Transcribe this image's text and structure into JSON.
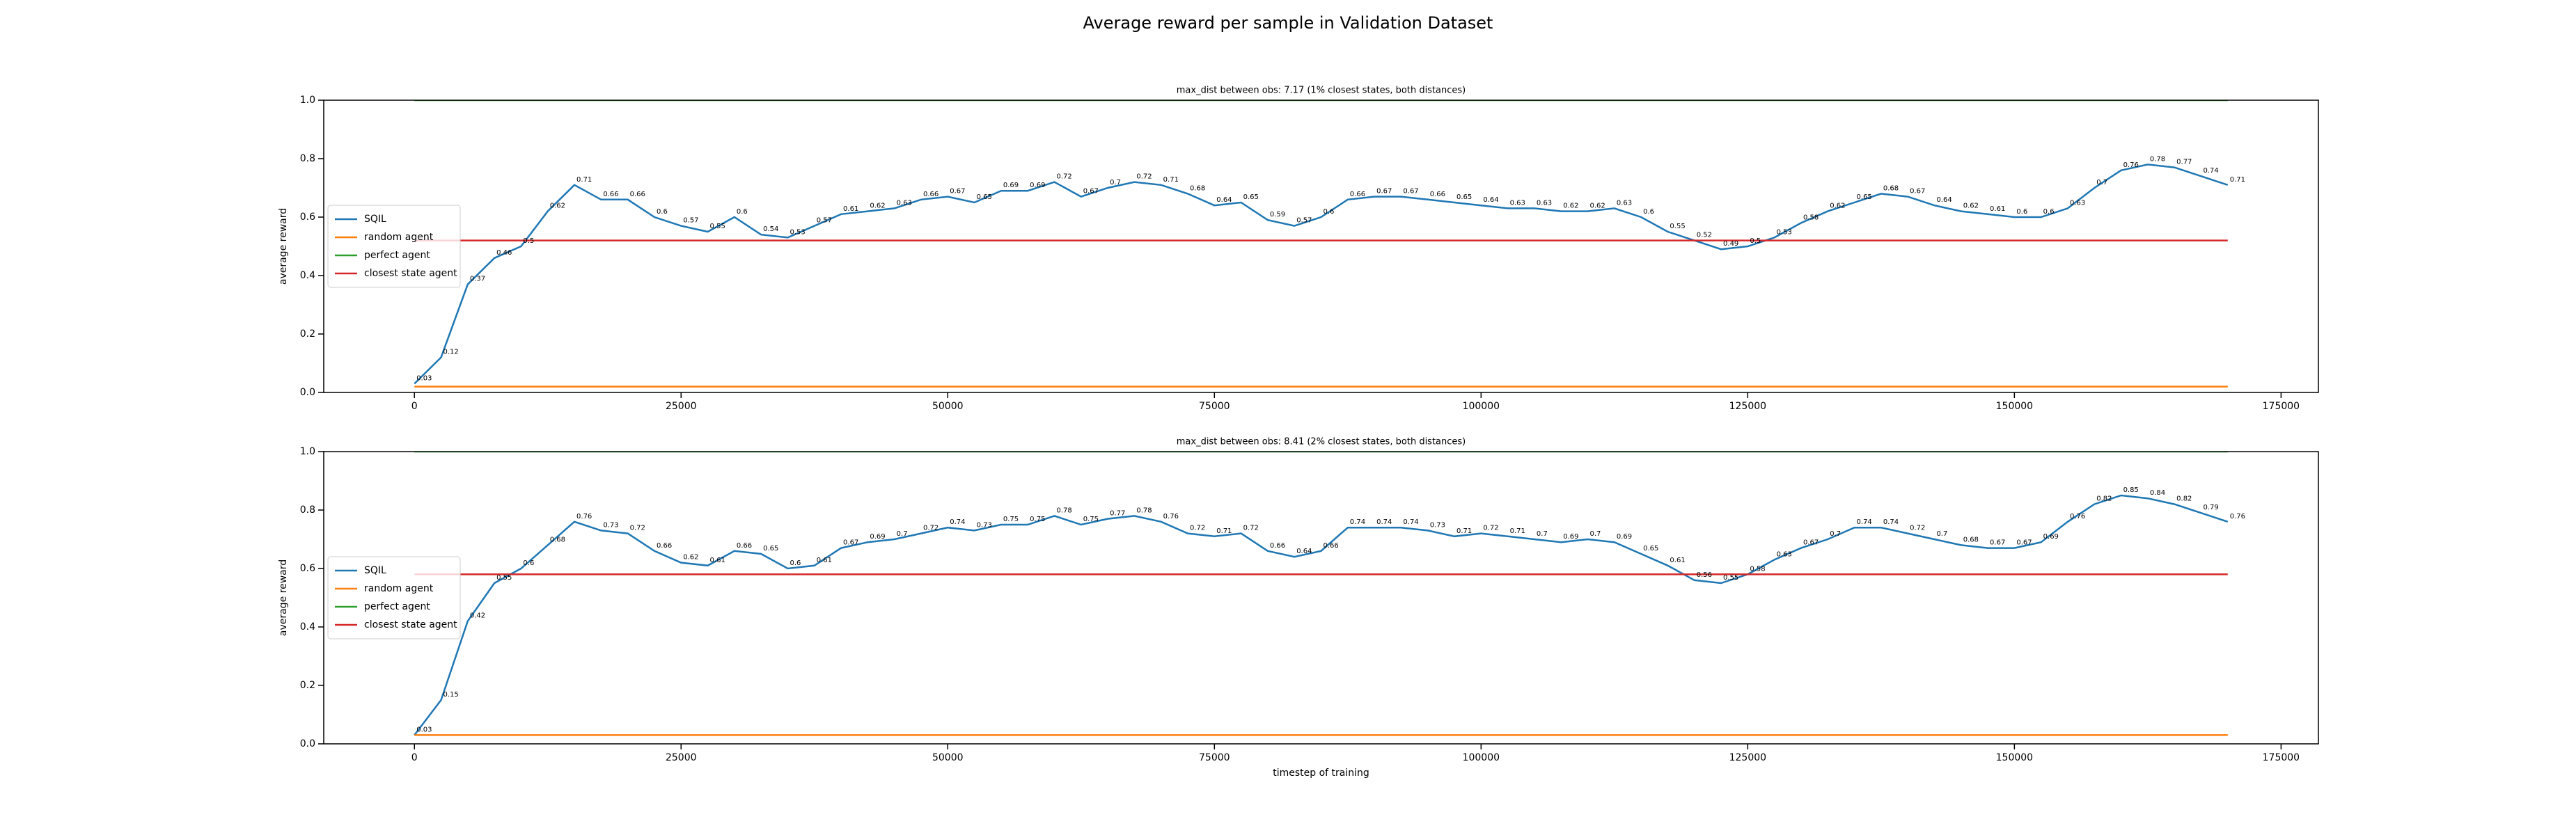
{
  "title": "Average reward per sample in Validation Dataset",
  "chart_data": [
    {
      "type": "line",
      "title": "max_dist between obs: 7.17 (1% closest states, both distances)",
      "ylabel": "average reward",
      "legend": "center left",
      "xlim": [
        -8500,
        178500
      ],
      "ylim": [
        0,
        1
      ],
      "xticks": [
        0,
        25000,
        50000,
        75000,
        100000,
        125000,
        150000,
        175000
      ],
      "yticks": [
        {
          "value": 0,
          "label": "0.0"
        },
        0.2,
        0.4,
        0.6,
        0.8,
        {
          "value": 1,
          "label": "1.0"
        }
      ],
      "x": [
        0,
        2500,
        5000,
        7500,
        10000,
        12500,
        15000,
        17500,
        20000,
        22500,
        25000,
        27500,
        30000,
        32500,
        35000,
        37500,
        40000,
        42500,
        45000,
        47500,
        50000,
        52500,
        55000,
        57500,
        60000,
        62500,
        65000,
        67500,
        70000,
        72500,
        75000,
        77500,
        80000,
        82500,
        85000,
        87500,
        90000,
        92500,
        95000,
        97500,
        100000,
        102500,
        105000,
        107500,
        110000,
        112500,
        115000,
        117500,
        120000,
        122500,
        125000,
        127500,
        130000,
        132500,
        135000,
        137500,
        140000,
        142500,
        145000,
        147500,
        150000,
        152500,
        155000,
        157500,
        160000,
        162500,
        165000,
        167500,
        170000
      ],
      "series": [
        {
          "name": "SQIL",
          "color": "#1f77b4",
          "show_values": true,
          "values": [
            0.03,
            0.12,
            0.37,
            0.46,
            0.5,
            0.62,
            0.71,
            0.66,
            0.66,
            0.6,
            0.57,
            0.55,
            0.6,
            0.54,
            0.53,
            0.57,
            0.61,
            0.62,
            0.63,
            0.66,
            0.67,
            0.65,
            0.69,
            0.69,
            0.72,
            0.67,
            0.7,
            0.72,
            0.71,
            0.68,
            0.64,
            0.65,
            0.59,
            0.57,
            0.6,
            0.66,
            0.67,
            0.67,
            0.66,
            0.65,
            0.64,
            0.63,
            0.63,
            0.62,
            0.62,
            0.63,
            0.6,
            0.55,
            0.52,
            0.49,
            0.5,
            0.53,
            0.58,
            0.62,
            0.65,
            0.68,
            0.67,
            0.64,
            0.62,
            0.61,
            0.6,
            0.6,
            0.63,
            0.7,
            0.76,
            0.78,
            0.77,
            0.74,
            0.71
          ]
        },
        {
          "name": "random agent",
          "color": "#ff7f0e",
          "values": [
            0.02,
            0.02,
            0.02,
            0.02,
            0.02,
            0.02,
            0.02,
            0.02,
            0.02,
            0.02,
            0.02,
            0.02,
            0.02,
            0.02,
            0.02,
            0.02,
            0.02,
            0.02,
            0.02,
            0.02,
            0.02,
            0.02,
            0.02,
            0.02,
            0.02,
            0.02,
            0.02,
            0.02,
            0.02,
            0.02,
            0.02,
            0.02,
            0.02,
            0.02,
            0.02,
            0.02,
            0.02,
            0.02,
            0.02,
            0.02,
            0.02,
            0.02,
            0.02,
            0.02,
            0.02,
            0.02,
            0.02,
            0.02,
            0.02,
            0.02,
            0.02,
            0.02,
            0.02,
            0.02,
            0.02,
            0.02,
            0.02,
            0.02,
            0.02,
            0.02,
            0.02,
            0.02,
            0.02,
            0.02,
            0.02,
            0.02,
            0.02,
            0.02,
            0.02
          ]
        },
        {
          "name": "perfect agent",
          "color": "#2ca02c",
          "x": [
            0,
            170000
          ],
          "values": [
            1,
            1
          ]
        },
        {
          "name": "closest state agent",
          "color": "#d62728",
          "x": [
            0,
            170000
          ],
          "values": [
            0.52,
            0.52
          ]
        }
      ]
    },
    {
      "type": "line",
      "title": "max_dist between obs: 8.41 (2% closest states, both distances)",
      "xlabel": "timestep of training",
      "ylabel": "average reward",
      "legend": "center left",
      "xlim": [
        -8500,
        178500
      ],
      "ylim": [
        0,
        1
      ],
      "xticks": [
        0,
        25000,
        50000,
        75000,
        100000,
        125000,
        150000,
        175000
      ],
      "yticks": [
        {
          "value": 0,
          "label": "0.0"
        },
        0.2,
        0.4,
        0.6,
        0.8,
        {
          "value": 1,
          "label": "1.0"
        }
      ],
      "x": [
        0,
        2500,
        5000,
        7500,
        10000,
        12500,
        15000,
        17500,
        20000,
        22500,
        25000,
        27500,
        30000,
        32500,
        35000,
        37500,
        40000,
        42500,
        45000,
        47500,
        50000,
        52500,
        55000,
        57500,
        60000,
        62500,
        65000,
        67500,
        70000,
        72500,
        75000,
        77500,
        80000,
        82500,
        85000,
        87500,
        90000,
        92500,
        95000,
        97500,
        100000,
        102500,
        105000,
        107500,
        110000,
        112500,
        115000,
        117500,
        120000,
        122500,
        125000,
        127500,
        130000,
        132500,
        135000,
        137500,
        140000,
        142500,
        145000,
        147500,
        150000,
        152500,
        155000,
        157500,
        160000,
        162500,
        165000,
        167500,
        170000
      ],
      "series": [
        {
          "name": "SQIL",
          "color": "#1f77b4",
          "show_values": true,
          "values": [
            0.03,
            0.15,
            0.42,
            0.55,
            0.6,
            0.68,
            0.76,
            0.73,
            0.72,
            0.66,
            0.62,
            0.61,
            0.66,
            0.65,
            0.6,
            0.61,
            0.67,
            0.69,
            0.7,
            0.72,
            0.74,
            0.73,
            0.75,
            0.75,
            0.78,
            0.75,
            0.77,
            0.78,
            0.76,
            0.72,
            0.71,
            0.72,
            0.66,
            0.64,
            0.66,
            0.74,
            0.74,
            0.74,
            0.73,
            0.71,
            0.72,
            0.71,
            0.7,
            0.69,
            0.7,
            0.69,
            0.65,
            0.61,
            0.56,
            0.55,
            0.58,
            0.63,
            0.67,
            0.7,
            0.74,
            0.74,
            0.72,
            0.7,
            0.68,
            0.67,
            0.67,
            0.69,
            0.76,
            0.82,
            0.85,
            0.84,
            0.82,
            0.79,
            0.76
          ]
        },
        {
          "name": "random agent",
          "color": "#ff7f0e",
          "values": [
            0.03,
            0.03,
            0.03,
            0.03,
            0.03,
            0.03,
            0.03,
            0.03,
            0.03,
            0.03,
            0.03,
            0.03,
            0.03,
            0.03,
            0.03,
            0.03,
            0.03,
            0.03,
            0.03,
            0.03,
            0.03,
            0.03,
            0.03,
            0.03,
            0.03,
            0.03,
            0.03,
            0.03,
            0.03,
            0.03,
            0.03,
            0.03,
            0.03,
            0.03,
            0.03,
            0.03,
            0.03,
            0.03,
            0.03,
            0.03,
            0.03,
            0.03,
            0.03,
            0.03,
            0.03,
            0.03,
            0.03,
            0.03,
            0.03,
            0.03,
            0.03,
            0.03,
            0.03,
            0.03,
            0.03,
            0.03,
            0.03,
            0.03,
            0.03,
            0.03,
            0.03,
            0.03,
            0.03,
            0.03,
            0.03,
            0.03,
            0.03,
            0.03,
            0.03
          ]
        },
        {
          "name": "perfect agent",
          "color": "#2ca02c",
          "x": [
            0,
            170000
          ],
          "values": [
            1,
            1
          ]
        },
        {
          "name": "closest state agent",
          "color": "#d62728",
          "x": [
            0,
            170000
          ],
          "values": [
            0.58,
            0.58
          ]
        }
      ]
    }
  ]
}
